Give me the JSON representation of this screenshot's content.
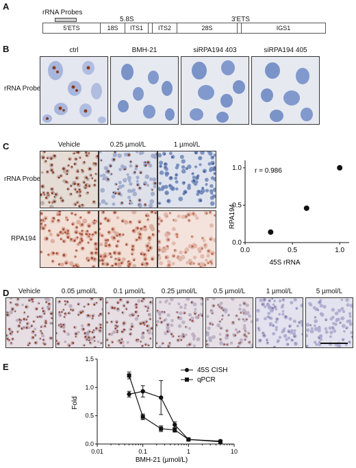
{
  "panel_a": {
    "letter": "A",
    "probe_label": "rRNA Probes",
    "label_58s": "5.8S",
    "label_3ets": "3'ETS",
    "segments": [
      "5'ETS",
      "18S",
      "ITS1",
      "",
      "ITS2",
      "28S",
      "",
      "IGS1"
    ]
  },
  "panel_b": {
    "letter": "B",
    "row_label": "rRNA Probe",
    "columns": [
      "ctrl",
      "BMH-21",
      "siRPA194 403",
      "siRPA194 405"
    ]
  },
  "panel_c": {
    "letter": "C",
    "columns": [
      "Vehicle",
      "0.25 µmol/L",
      "1 µmol/L"
    ],
    "rows": [
      "rRNA Probe",
      "RPA194"
    ]
  },
  "panel_d": {
    "letter": "D",
    "columns": [
      "Vehicle",
      "0.05 µmol/L",
      "0.1 µmol/L",
      "0.25 µmol/L",
      "0.5 µmol/L",
      "1 µmol/L",
      "5 µmol/L"
    ]
  },
  "panel_e": {
    "letter": "E"
  },
  "colors": {
    "cish_stain": "#8a3a1e",
    "hematoxylin": "#6d86b8",
    "rpa_stain": "#a4503a",
    "marker": "#111111"
  },
  "chart_data": [
    {
      "type": "scatter",
      "title": "",
      "annotation": "r = 0.986",
      "xlabel": "45S rRNA",
      "ylabel": "RPA194",
      "xlim": [
        0,
        1.1
      ],
      "ylim": [
        0,
        1.1
      ],
      "xticks": [
        "0.0",
        "0.5",
        "1.0"
      ],
      "yticks": [
        "0.0",
        "0.5",
        "1.0"
      ],
      "points": [
        {
          "x": 0.27,
          "y": 0.14
        },
        {
          "x": 0.65,
          "y": 0.46
        },
        {
          "x": 1.0,
          "y": 1.0
        }
      ],
      "grid": false
    },
    {
      "type": "line",
      "title": "",
      "xlabel": "BMH-21 (µmol/L)",
      "ylabel": "Fold",
      "xscale": "log",
      "xlim": [
        0.01,
        10
      ],
      "ylim": [
        0,
        1.5
      ],
      "xticks": [
        "0.01",
        "0.1",
        "1",
        "10"
      ],
      "yticks": [
        "0.0",
        "0.5",
        "1.0",
        "1.5"
      ],
      "legend_position": "top-right",
      "series": [
        {
          "name": "45S CISH",
          "marker": "circle",
          "x": [
            0.05,
            0.1,
            0.25,
            0.5,
            1,
            5
          ],
          "y": [
            0.88,
            0.93,
            0.82,
            0.34,
            0.08,
            0.05
          ],
          "err": [
            0.05,
            0.1,
            0.3,
            0.05,
            0.02,
            0.02
          ]
        },
        {
          "name": "qPCR",
          "marker": "square",
          "x": [
            0.05,
            0.1,
            0.25,
            0.5,
            1,
            5
          ],
          "y": [
            1.21,
            0.48,
            0.27,
            0.25,
            0.08,
            0.04
          ],
          "err": [
            0.06,
            0.05,
            0.05,
            0.04,
            0.02,
            0.01
          ]
        }
      ]
    }
  ]
}
